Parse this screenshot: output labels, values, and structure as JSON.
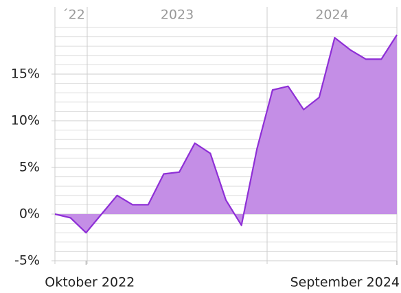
{
  "chart_data": {
    "type": "area",
    "categories": [
      null,
      null,
      "Oktober 2022",
      null,
      null,
      null,
      null,
      null,
      null,
      null,
      null,
      null,
      null,
      null,
      null,
      null,
      null,
      null,
      null,
      null,
      null,
      null,
      "September 2024"
    ],
    "values": [
      0,
      -0.4,
      -2,
      0,
      2,
      1,
      1,
      4.3,
      4.5,
      7.6,
      6.5,
      1.5,
      -1.2,
      7,
      13.3,
      13.7,
      11.2,
      12.5,
      18.9,
      17.6,
      16.6,
      16.6,
      19.2
    ],
    "line_color": "#8e2fd6",
    "fill_color": "#c48ee6",
    "ylim": [
      -5,
      20
    ],
    "yticks": [
      {
        "value": -5,
        "label": "-5%"
      },
      {
        "value": 0,
        "label": "0%"
      },
      {
        "value": 5,
        "label": "5%"
      },
      {
        "value": 10,
        "label": "10%"
      },
      {
        "value": 15,
        "label": "15%"
      }
    ],
    "minor_yticks": [
      -4,
      -3,
      -2,
      -1,
      1,
      2,
      3,
      4,
      6,
      7,
      8,
      9,
      11,
      12,
      13,
      14,
      16,
      17,
      18,
      19,
      20
    ],
    "years": [
      "´22",
      "2023",
      "2024"
    ],
    "grid": true
  }
}
